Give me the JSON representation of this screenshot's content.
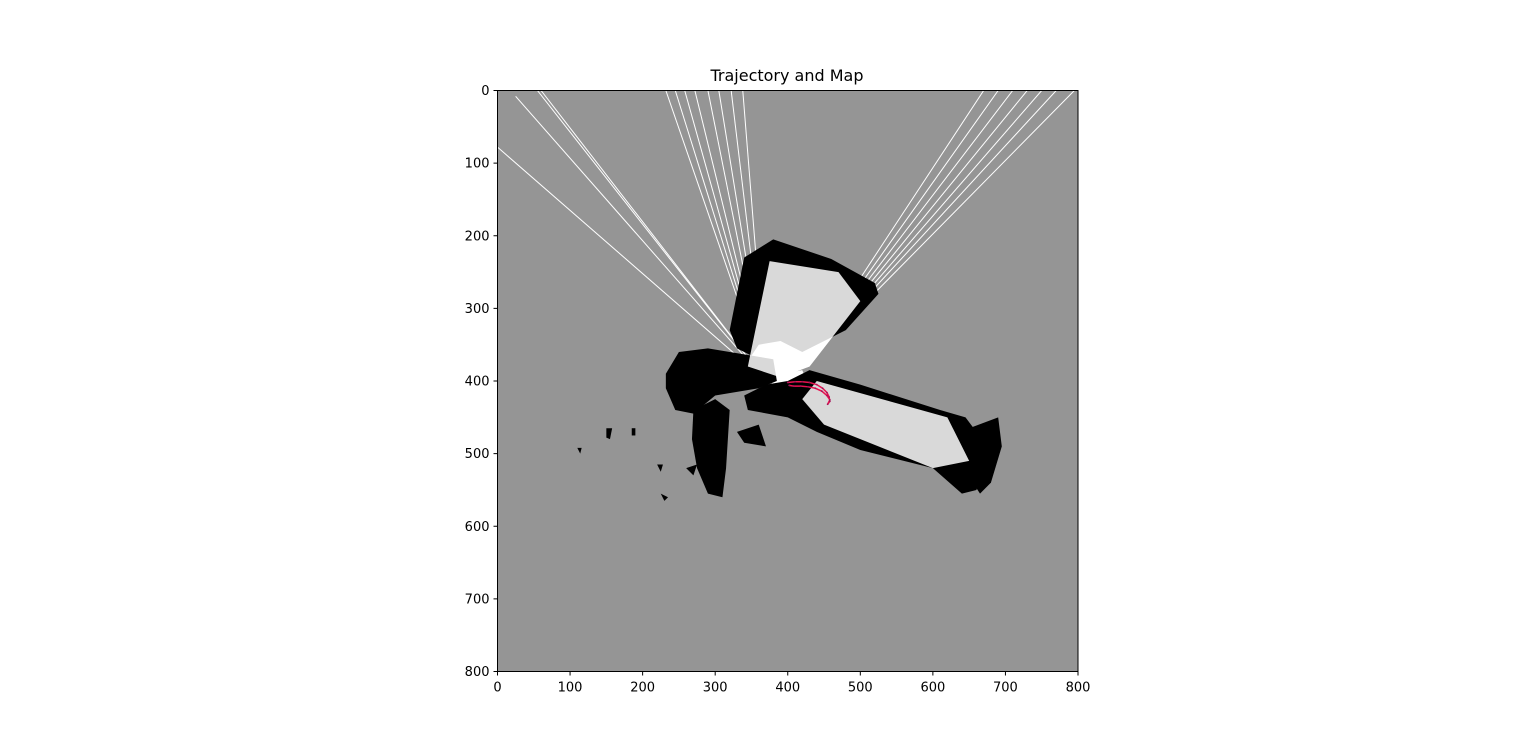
{
  "chart_data": {
    "type": "heatmap",
    "title": "Trajectory and Map",
    "xlabel": "",
    "ylabel": "",
    "xlim": [
      0,
      800
    ],
    "ylim": [
      800,
      0
    ],
    "y_inverted": true,
    "x_ticks": [
      0,
      100,
      200,
      300,
      400,
      500,
      600,
      700,
      800
    ],
    "y_ticks": [
      0,
      100,
      200,
      300,
      400,
      500,
      600,
      700,
      800
    ],
    "grid": false,
    "colors": {
      "unknown": "#959595",
      "free": "#ffffff",
      "occupied": "#000000",
      "trajectory": "#e8114f",
      "trajectory_secondary": "#a0145a"
    },
    "map_regions": {
      "free_rays": [
        [
          [
            370,
            400
          ],
          [
            232,
            0
          ]
        ],
        [
          [
            370,
            400
          ],
          [
            245,
            0
          ]
        ],
        [
          [
            370,
            400
          ],
          [
            258,
            0
          ]
        ],
        [
          [
            370,
            400
          ],
          [
            272,
            0
          ]
        ],
        [
          [
            370,
            400
          ],
          [
            290,
            0
          ]
        ],
        [
          [
            370,
            400
          ],
          [
            305,
            0
          ]
        ],
        [
          [
            370,
            400
          ],
          [
            322,
            0
          ]
        ],
        [
          [
            370,
            400
          ],
          [
            338,
            0
          ]
        ],
        [
          [
            370,
            400
          ],
          [
            0,
            78
          ]
        ],
        [
          [
            370,
            400
          ],
          [
            25,
            8
          ]
        ],
        [
          [
            370,
            400
          ],
          [
            55,
            0
          ]
        ],
        [
          [
            370,
            400
          ],
          [
            60,
            0
          ]
        ],
        [
          [
            420,
            380
          ],
          [
            670,
            0
          ]
        ],
        [
          [
            420,
            380
          ],
          [
            690,
            0
          ]
        ],
        [
          [
            420,
            380
          ],
          [
            710,
            0
          ]
        ],
        [
          [
            420,
            380
          ],
          [
            730,
            0
          ]
        ],
        [
          [
            420,
            380
          ],
          [
            750,
            0
          ]
        ],
        [
          [
            420,
            380
          ],
          [
            770,
            0
          ]
        ],
        [
          [
            420,
            380
          ],
          [
            795,
            0
          ]
        ]
      ],
      "free_polygons": [
        [
          [
            345,
            380
          ],
          [
            375,
            235
          ],
          [
            470,
            250
          ],
          [
            500,
            290
          ],
          [
            430,
            380
          ],
          [
            390,
            395
          ]
        ],
        [
          [
            420,
            425
          ],
          [
            440,
            400
          ],
          [
            620,
            450
          ],
          [
            650,
            510
          ],
          [
            600,
            520
          ],
          [
            450,
            460
          ]
        ],
        [
          [
            370,
            395
          ],
          [
            420,
            385
          ],
          [
            430,
            410
          ],
          [
            395,
            420
          ]
        ]
      ],
      "occupied_polygons": [
        [
          [
            320,
            330
          ],
          [
            340,
            230
          ],
          [
            380,
            205
          ],
          [
            460,
            232
          ],
          [
            520,
            265
          ],
          [
            525,
            280
          ],
          [
            480,
            330
          ],
          [
            420,
            360
          ],
          [
            390,
            345
          ],
          [
            360,
            350
          ],
          [
            350,
            365
          ],
          [
            330,
            355
          ]
        ],
        [
          [
            232,
            390
          ],
          [
            250,
            360
          ],
          [
            290,
            355
          ],
          [
            380,
            370
          ],
          [
            385,
            400
          ],
          [
            360,
            410
          ],
          [
            300,
            420
          ],
          [
            270,
            445
          ],
          [
            245,
            440
          ],
          [
            232,
            410
          ]
        ],
        [
          [
            270,
            440
          ],
          [
            300,
            425
          ],
          [
            320,
            440
          ],
          [
            315,
            520
          ],
          [
            310,
            560
          ],
          [
            290,
            555
          ],
          [
            275,
            520
          ],
          [
            268,
            480
          ]
        ],
        [
          [
            400,
            400
          ],
          [
            430,
            385
          ],
          [
            500,
            405
          ],
          [
            610,
            440
          ],
          [
            645,
            450
          ],
          [
            660,
            470
          ],
          [
            670,
            520
          ],
          [
            660,
            550
          ],
          [
            640,
            555
          ],
          [
            600,
            520
          ],
          [
            540,
            505
          ],
          [
            500,
            495
          ],
          [
            440,
            470
          ],
          [
            400,
            450
          ],
          [
            345,
            440
          ],
          [
            340,
            420
          ],
          [
            370,
            405
          ]
        ],
        [
          [
            650,
            465
          ],
          [
            690,
            450
          ],
          [
            695,
            490
          ],
          [
            680,
            540
          ],
          [
            665,
            555
          ],
          [
            655,
            540
          ]
        ],
        [
          [
            330,
            470
          ],
          [
            360,
            460
          ],
          [
            370,
            490
          ],
          [
            340,
            485
          ]
        ],
        [
          [
            260,
            520
          ],
          [
            275,
            515
          ],
          [
            270,
            530
          ]
        ],
        [
          [
            150,
            465
          ],
          [
            158,
            465
          ],
          [
            155,
            480
          ],
          [
            150,
            478
          ]
        ],
        [
          [
            185,
            465
          ],
          [
            190,
            465
          ],
          [
            190,
            475
          ],
          [
            185,
            475
          ]
        ],
        [
          [
            110,
            492
          ],
          [
            116,
            492
          ],
          [
            114,
            500
          ]
        ],
        [
          [
            220,
            515
          ],
          [
            228,
            515
          ],
          [
            225,
            525
          ]
        ],
        [
          [
            225,
            555
          ],
          [
            235,
            560
          ],
          [
            230,
            565
          ]
        ]
      ]
    },
    "trajectory": [
      [
        400,
        402
      ],
      [
        410,
        401
      ],
      [
        420,
        401
      ],
      [
        430,
        402
      ],
      [
        440,
        405
      ],
      [
        448,
        410
      ],
      [
        454,
        416
      ],
      [
        457,
        422
      ],
      [
        458,
        428
      ],
      [
        455,
        432
      ],
      [
        458,
        426
      ],
      [
        454,
        420
      ],
      [
        447,
        414
      ],
      [
        438,
        410
      ],
      [
        428,
        408
      ],
      [
        418,
        407
      ],
      [
        408,
        407
      ],
      [
        402,
        406
      ]
    ]
  }
}
